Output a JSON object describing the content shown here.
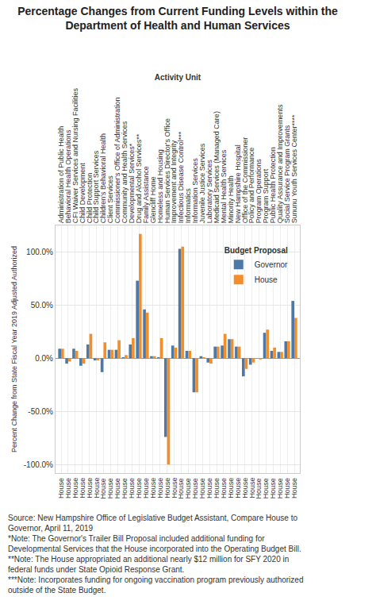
{
  "chart_data": {
    "type": "bar",
    "title": "Percentage Changes from Current Funding Levels within the Department of Health and Human Services",
    "x_label": "Activity Unit",
    "y_label": "Percent Change from State Fiscal Year 2019 Adjusted Authorized",
    "categories": [
      "Administration of Public Health",
      "Behavioral Health Operations",
      "CFI Waiver Services and Nursing Facilities",
      "Child Development",
      "Child Protection",
      "Child Support Services",
      "Children's Behavioral Health",
      "Client Services",
      "Commissioner's Office of Administration",
      "Community and Health Services",
      "Developmental Services*",
      "Drug and Alcohol Services**",
      "Family Assistance",
      "Glencliff Home",
      "Homeless and Housing",
      "Human Services Director's Office",
      "Improvement and Integrity",
      "Infectious Disease Control***",
      "Informatics",
      "Information Services",
      "Juvenile Justice Services",
      "Laboratory Services",
      "Medicaid Services (Managed Care)",
      "Mental Health Services",
      "Minority Health",
      "New Hampshire Hospital",
      "Office of the Commissioner",
      "Policy and Performance",
      "Program Operations",
      "Program Support",
      "Public Health Protection",
      "Quality Assurance and Improvements",
      "Social Service Program Grants",
      "Sununu Youth Services Center****"
    ],
    "category_sublabels": [
      "House",
      "House",
      "House",
      "House",
      "House",
      "House",
      "House",
      "House",
      "House",
      "House",
      "House",
      "House",
      "House",
      "House",
      "House",
      "House",
      "House",
      "House",
      "House",
      "House",
      "House",
      "House",
      "House",
      "House",
      "House",
      "House",
      "House",
      "House",
      "House",
      "House",
      "House",
      "House",
      "House",
      "House"
    ],
    "series": [
      {
        "name": "Governor",
        "color": "#4e79a7",
        "values": [
          9,
          -5,
          9,
          -7,
          13,
          -2,
          -13,
          8,
          8,
          1,
          13,
          73,
          46,
          2,
          1,
          -74,
          12,
          103,
          7,
          -32,
          2,
          -4,
          11,
          12,
          18,
          11,
          -17,
          -6,
          0,
          24,
          7,
          6,
          16,
          54
        ]
      },
      {
        "name": "House",
        "color": "#f28e2b",
        "values": [
          9,
          -3,
          7,
          -5,
          23,
          -2,
          15,
          8,
          17,
          3,
          19,
          117,
          43,
          2,
          19,
          -100,
          10,
          105,
          7,
          -32,
          1,
          -5,
          11,
          23,
          18,
          11,
          -10,
          -4,
          -1,
          27,
          10,
          6,
          16,
          38
        ]
      }
    ],
    "legend_title": "Budget Proposal",
    "legend": "top right",
    "ylim": [
      -108,
      125
    ],
    "yticks": [
      {
        "value": -100,
        "label": "-100.0%"
      },
      {
        "value": -50,
        "label": "-50.0%"
      },
      {
        "value": 0,
        "label": "0.0%"
      },
      {
        "value": 50,
        "label": "50.0%"
      },
      {
        "value": 100,
        "label": "100.0%"
      }
    ],
    "grid": true,
    "notes": [
      "Source: New Hampshire Office of Legislative Budget Assistant, Compare House to Governor, April 11, 2019",
      "*Note: The Governor's Trailer Bill Proposal included additional funding for Developmental Services that the House incorporated into the Operating Budget Bill.",
      "**Note: The House appropriated an additional nearly $12 million for SFY 2020 in federal funds under State Opioid Response Grant.",
      "***Note: Incorporates funding for ongoing vaccination program previously authorized outside of the State Budget."
    ]
  }
}
